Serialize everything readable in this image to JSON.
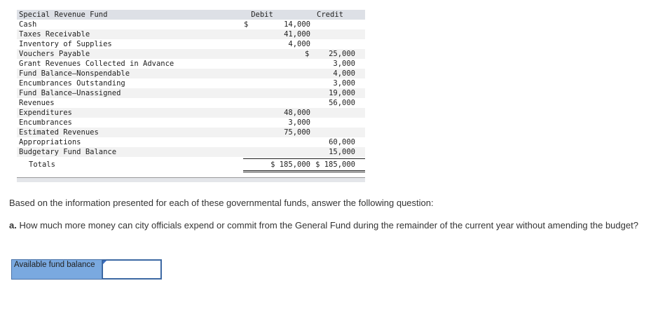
{
  "table": {
    "title": "Special Revenue Fund",
    "debit_header": "Debit",
    "credit_header": "Credit",
    "rows": [
      {
        "label": "Cash",
        "debit_sign": "$",
        "debit": "14,000",
        "credit_sign": "",
        "credit": ""
      },
      {
        "label": "Taxes Receivable",
        "debit_sign": "",
        "debit": "41,000",
        "credit_sign": "",
        "credit": ""
      },
      {
        "label": "Inventory of Supplies",
        "debit_sign": "",
        "debit": "4,000",
        "credit_sign": "",
        "credit": ""
      },
      {
        "label": "Vouchers Payable",
        "debit_sign": "",
        "debit": "",
        "credit_sign": "$",
        "credit": "25,000"
      },
      {
        "label": "Grant Revenues Collected in Advance",
        "debit_sign": "",
        "debit": "",
        "credit_sign": "",
        "credit": "3,000"
      },
      {
        "label": "Fund Balance—Nonspendable",
        "debit_sign": "",
        "debit": "",
        "credit_sign": "",
        "credit": "4,000"
      },
      {
        "label": "Encumbrances Outstanding",
        "debit_sign": "",
        "debit": "",
        "credit_sign": "",
        "credit": "3,000"
      },
      {
        "label": "Fund Balance—Unassigned",
        "debit_sign": "",
        "debit": "",
        "credit_sign": "",
        "credit": "19,000"
      },
      {
        "label": "Revenues",
        "debit_sign": "",
        "debit": "",
        "credit_sign": "",
        "credit": "56,000"
      },
      {
        "label": "Expenditures",
        "debit_sign": "",
        "debit": "48,000",
        "credit_sign": "",
        "credit": ""
      },
      {
        "label": "Encumbrances",
        "debit_sign": "",
        "debit": "3,000",
        "credit_sign": "",
        "credit": ""
      },
      {
        "label": "Estimated Revenues",
        "debit_sign": "",
        "debit": "75,000",
        "credit_sign": "",
        "credit": ""
      },
      {
        "label": "Appropriations",
        "debit_sign": "",
        "debit": "",
        "credit_sign": "",
        "credit": "60,000"
      },
      {
        "label": "Budgetary Fund Balance",
        "debit_sign": "",
        "debit": "",
        "credit_sign": "",
        "credit": "15,000"
      }
    ],
    "totals": {
      "label": "Totals",
      "debit": "$ 185,000",
      "credit": "$ 185,000"
    }
  },
  "instructions": "Based on the information presented for each of these governmental funds, answer the following question:",
  "question": {
    "prefix": "a.",
    "text": " How much more money can city officials expend or commit from the General Fund during the remainder of the current year without amending the budget?"
  },
  "answer": {
    "label": "Available fund balance",
    "value": ""
  }
}
